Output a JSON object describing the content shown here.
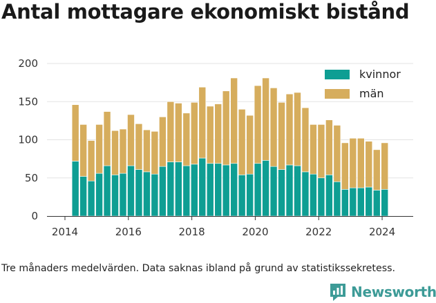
{
  "title": "Antal mottagare ekonomiskt bistånd",
  "footnote": "Tre månaders medelvärden. Data saknas ibland på grund av statistikssekretess.",
  "brand": {
    "name": "Newsworthy",
    "color": "#3d9b97"
  },
  "chart_data": {
    "type": "bar",
    "stacked": true,
    "title": "Antal mottagare ekonomiskt bistånd",
    "xlabel": "",
    "ylabel": "",
    "ylim": [
      0,
      200
    ],
    "yticks": [
      0,
      50,
      100,
      150,
      200
    ],
    "xticks": [
      2014,
      2016,
      2018,
      2020,
      2022,
      2024
    ],
    "x_range": [
      2014.0,
      2024.5
    ],
    "grid": true,
    "legend_position": "top-right",
    "x": [
      2014.33,
      2014.58,
      2014.83,
      2015.08,
      2015.33,
      2015.58,
      2015.83,
      2016.08,
      2016.33,
      2016.58,
      2016.83,
      2017.08,
      2017.33,
      2017.58,
      2017.83,
      2018.08,
      2018.33,
      2018.58,
      2018.83,
      2019.08,
      2019.33,
      2019.58,
      2019.83,
      2020.08,
      2020.33,
      2020.58,
      2020.83,
      2021.08,
      2021.33,
      2021.58,
      2021.83,
      2022.08,
      2022.33,
      2022.58,
      2022.83,
      2023.08,
      2023.33,
      2023.58,
      2023.83,
      2024.08
    ],
    "series": [
      {
        "name": "kvinnor",
        "color": "#0e9e93",
        "values": [
          72,
          52,
          46,
          56,
          66,
          54,
          56,
          66,
          61,
          58,
          55,
          65,
          71,
          71,
          66,
          68,
          76,
          69,
          69,
          67,
          69,
          54,
          55,
          69,
          73,
          65,
          61,
          67,
          66,
          58,
          55,
          50,
          54,
          45,
          35,
          37,
          37,
          38,
          34,
          35
        ]
      },
      {
        "name": "män",
        "color": "#d6ad5d",
        "values": [
          74,
          68,
          53,
          64,
          71,
          58,
          58,
          67,
          60,
          55,
          56,
          65,
          79,
          77,
          69,
          81,
          93,
          75,
          78,
          97,
          112,
          86,
          77,
          102,
          108,
          103,
          88,
          93,
          96,
          84,
          65,
          70,
          72,
          74,
          61,
          65,
          65,
          60,
          53,
          61
        ]
      }
    ]
  }
}
